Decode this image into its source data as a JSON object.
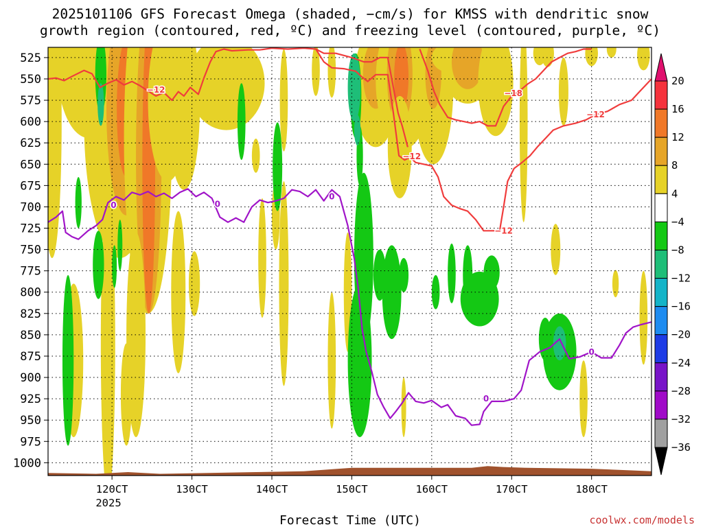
{
  "chart_data": {
    "type": "heatmap",
    "title_line1": "2025101106 GFS Forecast Omega (shaded, −cm/s) for KMSS with dendritic snow",
    "title_line2": "growth region (contoured, red, ºC) and freezing level (contoured, purple, ºC)",
    "xlabel": "Forecast Time (UTC)",
    "year_label": "2025",
    "credit": "coolwx.com/models",
    "x_range": [
      112,
      187.5
    ],
    "y_range": [
      1015,
      513
    ],
    "x_ticks": [
      {
        "value": 120,
        "label": "120CT"
      },
      {
        "value": 130,
        "label": "130CT"
      },
      {
        "value": 140,
        "label": "140CT"
      },
      {
        "value": 150,
        "label": "150CT"
      },
      {
        "value": 160,
        "label": "160CT"
      },
      {
        "value": 170,
        "label": "170CT"
      },
      {
        "value": 180,
        "label": "180CT"
      }
    ],
    "y_ticks": [
      525,
      550,
      575,
      600,
      625,
      650,
      675,
      700,
      725,
      750,
      775,
      800,
      825,
      850,
      875,
      900,
      925,
      950,
      975,
      1000
    ],
    "colorbar": {
      "labels": [
        "20",
        "16",
        "12",
        "8",
        "4",
        "−4",
        "−8",
        "−12",
        "−16",
        "−20",
        "−24",
        "−28",
        "−32",
        "−36"
      ],
      "colors": [
        "#e0106e",
        "#f5323c",
        "#f07828",
        "#e6a528",
        "#e6d228",
        "#ffffff",
        "#14c814",
        "#1ebe78",
        "#14b4c8",
        "#1e8cf0",
        "#1e3ce6",
        "#7814c8",
        "#a00ac8",
        "#a0a0a0",
        "#000000"
      ]
    },
    "shading_colors": {
      "yellow": "#e6d228",
      "gold": "#e6a528",
      "orange": "#f07828",
      "green": "#14c814",
      "teal": "#1ebe78"
    },
    "terrain_color": "#a0522d",
    "freezing_level": {
      "color": "#a014c8",
      "label": "0",
      "points": [
        [
          112,
          718
        ],
        [
          113,
          712
        ],
        [
          113.8,
          705
        ],
        [
          114.2,
          730
        ],
        [
          115,
          735
        ],
        [
          115.8,
          738
        ],
        [
          117,
          728
        ],
        [
          118,
          722
        ],
        [
          118.8,
          715
        ],
        [
          119.5,
          695
        ],
        [
          120.5,
          688
        ],
        [
          121.5,
          692
        ],
        [
          122.5,
          683
        ],
        [
          123.5,
          686
        ],
        [
          124.5,
          682
        ],
        [
          125.5,
          688
        ],
        [
          126.5,
          684
        ],
        [
          127.5,
          690
        ],
        [
          128.5,
          683
        ],
        [
          129.5,
          679
        ],
        [
          130.5,
          688
        ],
        [
          131.5,
          683
        ],
        [
          132.5,
          690
        ],
        [
          133.5,
          712
        ],
        [
          134.5,
          718
        ],
        [
          135.5,
          713
        ],
        [
          136.5,
          718
        ],
        [
          137.5,
          700
        ],
        [
          138.5,
          692
        ],
        [
          139.5,
          695
        ],
        [
          140.5,
          693
        ],
        [
          141.5,
          690
        ],
        [
          142.5,
          680
        ],
        [
          143.5,
          682
        ],
        [
          144.5,
          688
        ],
        [
          145.5,
          680
        ],
        [
          146.5,
          693
        ],
        [
          147.5,
          680
        ],
        [
          148.5,
          688
        ],
        [
          149.5,
          722
        ],
        [
          150.3,
          760
        ],
        [
          150.8,
          795
        ],
        [
          151.3,
          843
        ],
        [
          151.8,
          870
        ],
        [
          152.5,
          893
        ],
        [
          153.2,
          920
        ],
        [
          154,
          935
        ],
        [
          154.8,
          948
        ],
        [
          155.5,
          940
        ],
        [
          156.3,
          930
        ],
        [
          157.1,
          918
        ],
        [
          158,
          928
        ],
        [
          159,
          930
        ],
        [
          160,
          927
        ],
        [
          161.2,
          935
        ],
        [
          162,
          932
        ],
        [
          163,
          945
        ],
        [
          164.2,
          948
        ],
        [
          165,
          956
        ],
        [
          166,
          955
        ],
        [
          166.5,
          940
        ],
        [
          167.5,
          928
        ],
        [
          169,
          928
        ],
        [
          170.3,
          925
        ],
        [
          171.2,
          915
        ],
        [
          172.2,
          880
        ],
        [
          173.5,
          870
        ],
        [
          174.8,
          865
        ],
        [
          176,
          855
        ],
        [
          177.2,
          878
        ],
        [
          178.5,
          876
        ],
        [
          180,
          870
        ],
        [
          181.2,
          877
        ],
        [
          182.5,
          877
        ],
        [
          183.5,
          862
        ],
        [
          184.3,
          848
        ],
        [
          185.2,
          841
        ],
        [
          186.2,
          838
        ],
        [
          187.5,
          835
        ]
      ]
    },
    "isotherm_minus12_upper": {
      "color": "#f03c3c",
      "label": "−12",
      "points": [
        [
          112,
          550
        ],
        [
          113,
          549
        ],
        [
          114,
          552
        ],
        [
          115,
          547
        ],
        [
          116.5,
          540
        ],
        [
          117.5,
          544
        ],
        [
          118.5,
          560
        ],
        [
          119.5,
          555
        ],
        [
          120.5,
          551
        ],
        [
          121.5,
          557
        ],
        [
          122.5,
          553
        ],
        [
          123.5,
          558
        ],
        [
          124.5,
          564
        ],
        [
          125.5,
          570
        ],
        [
          126.5,
          566
        ],
        [
          127.5,
          575
        ],
        [
          128.3,
          565
        ],
        [
          129,
          570
        ],
        [
          129.8,
          560
        ],
        [
          130.8,
          568
        ],
        [
          131.5,
          549
        ],
        [
          132.3,
          530
        ],
        [
          133,
          518
        ],
        [
          134,
          515
        ],
        [
          135,
          517
        ],
        [
          137,
          516
        ],
        [
          138.5,
          516
        ],
        [
          140,
          514
        ],
        [
          142,
          515
        ],
        [
          144,
          514
        ],
        [
          145.5,
          515
        ],
        [
          146.5,
          530
        ],
        [
          147.5,
          537
        ],
        [
          149,
          538
        ],
        [
          150.5,
          541
        ],
        [
          151.3,
          548
        ],
        [
          152,
          553
        ],
        [
          153,
          545
        ],
        [
          154.5,
          545
        ],
        [
          155.2,
          590
        ],
        [
          155.9,
          640
        ],
        [
          156.6,
          645
        ],
        [
          157.3,
          642
        ],
        [
          158,
          648
        ],
        [
          159,
          650
        ],
        [
          160,
          652
        ],
        [
          160.8,
          665
        ],
        [
          161.5,
          688
        ],
        [
          162.5,
          698
        ],
        [
          163.5,
          702
        ],
        [
          164.5,
          705
        ],
        [
          165.5,
          715
        ],
        [
          166.5,
          728
        ],
        [
          167.5,
          728
        ],
        [
          168.5,
          728
        ],
        [
          169,
          700
        ],
        [
          169.5,
          670
        ],
        [
          170.3,
          655
        ],
        [
          171.3,
          648
        ],
        [
          172.3,
          640
        ],
        [
          173.2,
          630
        ],
        [
          174.2,
          620
        ],
        [
          175.2,
          610
        ],
        [
          176.5,
          605
        ],
        [
          178,
          602
        ],
        [
          179.3,
          598
        ],
        [
          180.5,
          592
        ],
        [
          182,
          588
        ],
        [
          183.5,
          580
        ],
        [
          185,
          575
        ],
        [
          186,
          565
        ],
        [
          187.5,
          550
        ]
      ]
    },
    "isotherm_minus12_lower": {
      "color": "#f03c3c",
      "points": [
        [
          145.5,
          515
        ],
        [
          146.5,
          520
        ],
        [
          148,
          520
        ],
        [
          150,
          525
        ],
        [
          151.5,
          530
        ],
        [
          152.5,
          530
        ],
        [
          153.5,
          525
        ],
        [
          154.5,
          525
        ],
        [
          155.2,
          560
        ],
        [
          155.8,
          590
        ],
        [
          156.3,
          605
        ],
        [
          157,
          630
        ]
      ]
    },
    "isotherm_minus18": {
      "color": "#f03c3c",
      "label": "−18",
      "points": [
        [
          158.5,
          515
        ],
        [
          159.5,
          540
        ],
        [
          160.3,
          565
        ],
        [
          161,
          580
        ],
        [
          162,
          595
        ],
        [
          163,
          598
        ],
        [
          164,
          600
        ],
        [
          165,
          602
        ],
        [
          166,
          600
        ],
        [
          167,
          605
        ],
        [
          168,
          605
        ],
        [
          169,
          582
        ],
        [
          170,
          570
        ],
        [
          171,
          564
        ],
        [
          172,
          556
        ],
        [
          173,
          550
        ],
        [
          174,
          540
        ],
        [
          175,
          530
        ],
        [
          176,
          525
        ],
        [
          177,
          520
        ],
        [
          178,
          518
        ],
        [
          179,
          515
        ],
        [
          180,
          515
        ]
      ]
    }
  }
}
